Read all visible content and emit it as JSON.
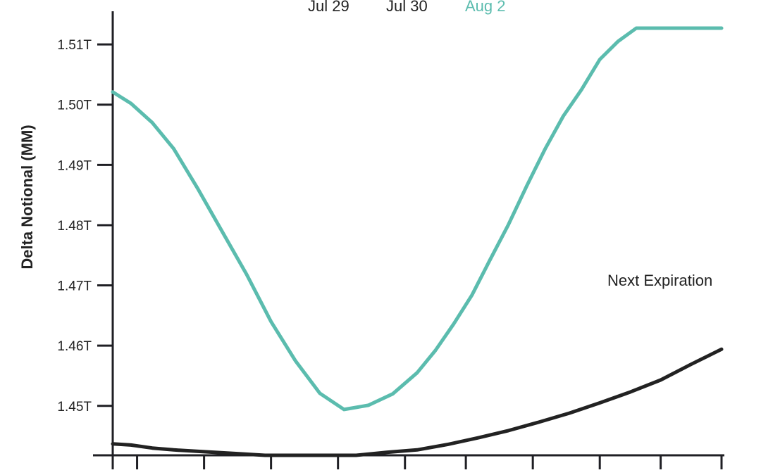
{
  "chart_data": {
    "type": "line",
    "ylabel": "Delta Notional (MM)",
    "legend": [
      "Jul 29",
      "Jul 30",
      "Aug 2"
    ],
    "legend_colors": [
      "#222222",
      "#222222",
      "#5bbcae"
    ],
    "annotation": "Next Expiration",
    "yticks": [
      "1.45T",
      "1.46T",
      "1.47T",
      "1.48T",
      "1.49T",
      "1.50T",
      "1.51T"
    ],
    "ytick_values": [
      1450,
      1460,
      1470,
      1480,
      1490,
      1500,
      1510
    ],
    "ylim": [
      1441.8,
      1515.5
    ],
    "xlim": [
      0,
      1
    ],
    "x_tick_positions": [
      0,
      0.04,
      0.15,
      0.26,
      0.37,
      0.48,
      0.58,
      0.69,
      0.8,
      0.9,
      1.0
    ],
    "series": [
      {
        "name": "Aug 2",
        "color": "#5bbcae",
        "x": [
          0,
          0.03,
          0.065,
          0.1,
          0.14,
          0.18,
          0.22,
          0.26,
          0.3,
          0.34,
          0.38,
          0.42,
          0.46,
          0.5,
          0.53,
          0.56,
          0.59,
          0.62,
          0.65,
          0.68,
          0.71,
          0.74,
          0.77,
          0.8,
          0.83,
          0.86,
          0.89,
          0.92,
          0.95,
          0.97,
          1.0
        ],
        "values": [
          1502.1,
          1500.2,
          1497.0,
          1492.7,
          1486.0,
          1478.9,
          1471.8,
          1464.0,
          1457.5,
          1452.1,
          1449.4,
          1450.1,
          1452.0,
          1455.5,
          1459.2,
          1463.6,
          1468.4,
          1474.3,
          1480.1,
          1486.5,
          1492.6,
          1498.1,
          1502.5,
          1507.5,
          1510.5,
          1512.7,
          1512.7,
          1512.7,
          1512.7,
          1512.7,
          1512.7
        ]
      },
      {
        "name": "",
        "color": "#222222",
        "x": [
          0,
          0.03,
          0.065,
          0.1,
          0.15,
          0.2,
          0.25,
          0.3,
          0.35,
          0.4,
          0.45,
          0.5,
          0.55,
          0.6,
          0.65,
          0.7,
          0.75,
          0.8,
          0.85,
          0.9,
          0.95,
          1.0
        ],
        "values": [
          1443.7,
          1443.5,
          1443.0,
          1442.7,
          1442.4,
          1442.1,
          1441.8,
          1441.8,
          1441.8,
          1441.8,
          1442.3,
          1442.7,
          1443.6,
          1444.7,
          1445.9,
          1447.3,
          1448.8,
          1450.5,
          1452.3,
          1454.3,
          1456.9,
          1459.4
        ]
      }
    ]
  }
}
